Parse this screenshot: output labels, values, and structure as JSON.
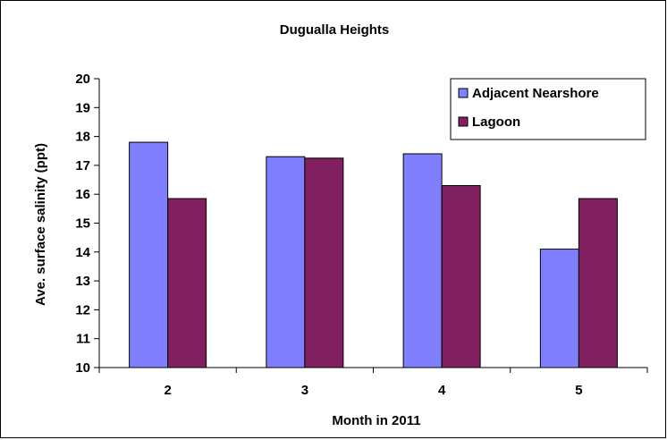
{
  "chart_data": {
    "type": "bar",
    "title": "Dugualla Heights",
    "xlabel": "Month in 2011",
    "ylabel": "Ave. surface salinity (ppt)",
    "categories": [
      "2",
      "3",
      "4",
      "5"
    ],
    "ylim": [
      10,
      20
    ],
    "yticks": [
      10,
      11,
      12,
      13,
      14,
      15,
      16,
      17,
      18,
      19,
      20
    ],
    "grid": false,
    "legend_position": "top-right",
    "series": [
      {
        "name": "Adjacent Nearshore",
        "color": "#8080FF",
        "values": [
          17.8,
          17.3,
          17.4,
          14.1
        ]
      },
      {
        "name": "Lagoon",
        "color": "#802060",
        "values": [
          15.85,
          17.25,
          16.3,
          15.85
        ]
      }
    ]
  }
}
